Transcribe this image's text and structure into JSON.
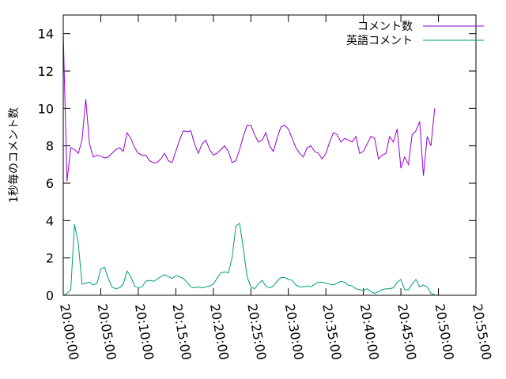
{
  "chart_data": {
    "type": "line",
    "ylabel": "1秒毎のコメント数",
    "xlabel": "",
    "title": "",
    "ylim": [
      0,
      15
    ],
    "yticks": [
      0,
      2,
      4,
      6,
      8,
      10,
      12,
      14
    ],
    "xlim": [
      "20:00:00",
      "20:55:00"
    ],
    "xticks": [
      "20:00:00",
      "20:05:00",
      "20:10:00",
      "20:15:00",
      "20:20:00",
      "20:25:00",
      "20:30:00",
      "20:35:00",
      "20:40:00",
      "20:45:00",
      "20:50:00",
      "20:55:00"
    ],
    "legend_position": "top-right",
    "grid": false,
    "series": [
      {
        "name": "コメント数",
        "color": "#9400d3",
        "points": [
          [
            "20:00:00",
            14.0
          ],
          [
            "20:00:30",
            6.1
          ],
          [
            "20:01:00",
            7.9
          ],
          [
            "20:01:30",
            7.8
          ],
          [
            "20:02:00",
            7.6
          ],
          [
            "20:02:30",
            8.3
          ],
          [
            "20:03:00",
            10.5
          ],
          [
            "20:03:30",
            8.1
          ],
          [
            "20:04:00",
            7.4
          ],
          [
            "20:04:30",
            7.5
          ],
          [
            "20:05:00",
            7.45
          ],
          [
            "20:05:30",
            7.35
          ],
          [
            "20:06:00",
            7.4
          ],
          [
            "20:06:30",
            7.6
          ],
          [
            "20:07:00",
            7.8
          ],
          [
            "20:07:30",
            7.9
          ],
          [
            "20:08:00",
            7.7
          ],
          [
            "20:08:30",
            8.7
          ],
          [
            "20:09:00",
            8.4
          ],
          [
            "20:09:30",
            7.9
          ],
          [
            "20:10:00",
            7.6
          ],
          [
            "20:10:30",
            7.5
          ],
          [
            "20:11:00",
            7.5
          ],
          [
            "20:11:30",
            7.2
          ],
          [
            "20:12:00",
            7.1
          ],
          [
            "20:12:30",
            7.1
          ],
          [
            "20:13:00",
            7.3
          ],
          [
            "20:13:30",
            7.6
          ],
          [
            "20:14:00",
            7.2
          ],
          [
            "20:14:30",
            7.1
          ],
          [
            "20:15:00",
            7.7
          ],
          [
            "20:15:30",
            8.3
          ],
          [
            "20:16:00",
            8.8
          ],
          [
            "20:16:30",
            8.75
          ],
          [
            "20:17:00",
            8.8
          ],
          [
            "20:17:30",
            8.1
          ],
          [
            "20:18:00",
            7.6
          ],
          [
            "20:18:30",
            8.1
          ],
          [
            "20:19:00",
            8.3
          ],
          [
            "20:19:30",
            7.8
          ],
          [
            "20:20:00",
            7.5
          ],
          [
            "20:20:30",
            7.6
          ],
          [
            "20:21:00",
            7.8
          ],
          [
            "20:21:30",
            8.0
          ],
          [
            "20:22:00",
            7.7
          ],
          [
            "20:22:30",
            7.1
          ],
          [
            "20:23:00",
            7.2
          ],
          [
            "20:23:30",
            7.8
          ],
          [
            "20:24:00",
            8.5
          ],
          [
            "20:24:30",
            9.1
          ],
          [
            "20:25:00",
            9.1
          ],
          [
            "20:25:30",
            8.6
          ],
          [
            "20:26:00",
            8.2
          ],
          [
            "20:26:30",
            8.3
          ],
          [
            "20:27:00",
            8.7
          ],
          [
            "20:27:30",
            8.0
          ],
          [
            "20:28:00",
            7.7
          ],
          [
            "20:28:30",
            8.4
          ],
          [
            "20:29:00",
            9.0
          ],
          [
            "20:29:30",
            9.1
          ],
          [
            "20:30:00",
            8.9
          ],
          [
            "20:30:30",
            8.4
          ],
          [
            "20:31:00",
            7.9
          ],
          [
            "20:31:30",
            7.6
          ],
          [
            "20:32:00",
            7.4
          ],
          [
            "20:32:30",
            7.9
          ],
          [
            "20:33:00",
            8.0
          ],
          [
            "20:33:30",
            7.7
          ],
          [
            "20:34:00",
            7.6
          ],
          [
            "20:34:30",
            7.3
          ],
          [
            "20:35:00",
            7.6
          ],
          [
            "20:35:30",
            8.2
          ],
          [
            "20:36:00",
            8.7
          ],
          [
            "20:36:30",
            8.6
          ],
          [
            "20:37:00",
            8.2
          ],
          [
            "20:37:30",
            8.4
          ],
          [
            "20:38:00",
            8.3
          ],
          [
            "20:38:30",
            8.2
          ],
          [
            "20:39:00",
            8.5
          ],
          [
            "20:39:30",
            7.6
          ],
          [
            "20:40:00",
            7.7
          ],
          [
            "20:40:30",
            8.1
          ],
          [
            "20:41:00",
            8.5
          ],
          [
            "20:41:30",
            8.4
          ],
          [
            "20:42:00",
            7.3
          ],
          [
            "20:42:30",
            7.5
          ],
          [
            "20:43:00",
            7.6
          ],
          [
            "20:43:30",
            8.5
          ],
          [
            "20:44:00",
            8.2
          ],
          [
            "20:44:30",
            8.9
          ],
          [
            "20:45:00",
            6.8
          ],
          [
            "20:45:30",
            7.4
          ],
          [
            "20:46:00",
            7.0
          ],
          [
            "20:46:30",
            8.6
          ],
          [
            "20:47:00",
            8.8
          ],
          [
            "20:47:30",
            9.3
          ],
          [
            "20:48:00",
            6.4
          ],
          [
            "20:48:30",
            8.5
          ],
          [
            "20:49:00",
            8.0
          ],
          [
            "20:49:30",
            10.0
          ]
        ]
      },
      {
        "name": "英語コメント",
        "color": "#009e73",
        "points": [
          [
            "20:00:00",
            0.0
          ],
          [
            "20:00:30",
            0.1
          ],
          [
            "20:01:00",
            0.3
          ],
          [
            "20:01:30",
            3.8
          ],
          [
            "20:02:00",
            2.8
          ],
          [
            "20:02:30",
            0.6
          ],
          [
            "20:03:00",
            0.65
          ],
          [
            "20:03:30",
            0.7
          ],
          [
            "20:04:00",
            0.55
          ],
          [
            "20:04:30",
            0.65
          ],
          [
            "20:05:00",
            1.4
          ],
          [
            "20:05:30",
            1.5
          ],
          [
            "20:06:00",
            0.9
          ],
          [
            "20:06:30",
            0.45
          ],
          [
            "20:07:00",
            0.35
          ],
          [
            "20:07:30",
            0.4
          ],
          [
            "20:08:00",
            0.6
          ],
          [
            "20:08:30",
            1.3
          ],
          [
            "20:09:00",
            1.0
          ],
          [
            "20:09:30",
            0.5
          ],
          [
            "20:10:00",
            0.4
          ],
          [
            "20:10:30",
            0.45
          ],
          [
            "20:11:00",
            0.75
          ],
          [
            "20:11:30",
            0.8
          ],
          [
            "20:12:00",
            0.75
          ],
          [
            "20:12:30",
            0.85
          ],
          [
            "20:13:00",
            1.0
          ],
          [
            "20:13:30",
            1.1
          ],
          [
            "20:14:00",
            1.0
          ],
          [
            "20:14:30",
            0.9
          ],
          [
            "20:15:00",
            1.05
          ],
          [
            "20:15:30",
            1.0
          ],
          [
            "20:16:00",
            0.9
          ],
          [
            "20:16:30",
            0.7
          ],
          [
            "20:17:00",
            0.45
          ],
          [
            "20:17:30",
            0.4
          ],
          [
            "20:18:00",
            0.45
          ],
          [
            "20:18:30",
            0.4
          ],
          [
            "20:19:00",
            0.45
          ],
          [
            "20:19:30",
            0.5
          ],
          [
            "20:20:00",
            0.6
          ],
          [
            "20:20:30",
            0.9
          ],
          [
            "20:21:00",
            1.2
          ],
          [
            "20:21:30",
            1.25
          ],
          [
            "20:22:00",
            1.2
          ],
          [
            "20:22:30",
            2.0
          ],
          [
            "20:23:00",
            3.7
          ],
          [
            "20:23:30",
            3.85
          ],
          [
            "20:24:00",
            2.5
          ],
          [
            "20:24:30",
            1.0
          ],
          [
            "20:25:00",
            0.45
          ],
          [
            "20:25:30",
            0.35
          ],
          [
            "20:26:00",
            0.6
          ],
          [
            "20:26:30",
            0.8
          ],
          [
            "20:27:00",
            0.5
          ],
          [
            "20:27:30",
            0.4
          ],
          [
            "20:28:00",
            0.5
          ],
          [
            "20:28:30",
            0.75
          ],
          [
            "20:29:00",
            0.95
          ],
          [
            "20:29:30",
            0.95
          ],
          [
            "20:30:00",
            0.85
          ],
          [
            "20:30:30",
            0.8
          ],
          [
            "20:31:00",
            0.55
          ],
          [
            "20:31:30",
            0.45
          ],
          [
            "20:32:00",
            0.45
          ],
          [
            "20:32:30",
            0.5
          ],
          [
            "20:33:00",
            0.45
          ],
          [
            "20:33:30",
            0.6
          ],
          [
            "20:34:00",
            0.7
          ],
          [
            "20:34:30",
            0.7
          ],
          [
            "20:35:00",
            0.65
          ],
          [
            "20:35:30",
            0.6
          ],
          [
            "20:36:00",
            0.55
          ],
          [
            "20:36:30",
            0.65
          ],
          [
            "20:37:00",
            0.75
          ],
          [
            "20:37:30",
            0.7
          ],
          [
            "20:38:00",
            0.55
          ],
          [
            "20:38:30",
            0.5
          ],
          [
            "20:39:00",
            0.35
          ],
          [
            "20:39:30",
            0.3
          ],
          [
            "20:40:00",
            0.25
          ],
          [
            "20:40:30",
            0.35
          ],
          [
            "20:41:00",
            0.2
          ],
          [
            "20:41:30",
            0.1
          ],
          [
            "20:42:00",
            0.2
          ],
          [
            "20:42:30",
            0.3
          ],
          [
            "20:43:00",
            0.35
          ],
          [
            "20:43:30",
            0.35
          ],
          [
            "20:44:00",
            0.4
          ],
          [
            "20:44:30",
            0.7
          ],
          [
            "20:45:00",
            0.85
          ],
          [
            "20:45:30",
            0.3
          ],
          [
            "20:46:00",
            0.3
          ],
          [
            "20:46:30",
            0.6
          ],
          [
            "20:47:00",
            0.85
          ],
          [
            "20:47:30",
            0.45
          ],
          [
            "20:48:00",
            0.55
          ],
          [
            "20:48:30",
            0.45
          ],
          [
            "20:49:00",
            0.1
          ],
          [
            "20:49:30",
            0.05
          ]
        ]
      }
    ]
  }
}
